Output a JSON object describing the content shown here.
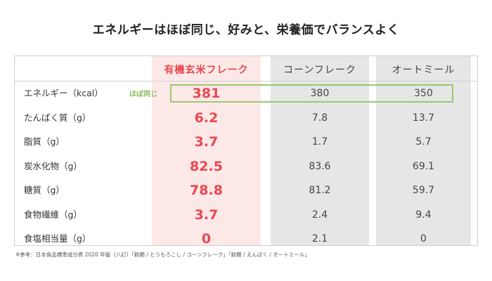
{
  "title": "エネルギーはほぼ同じ、好みと、栄養価でバランスよく",
  "annotation": "ほぼ同じ",
  "footnote": "※参考：日本食品標準成分表 2020 年版（八訂）「穀類 / とうもろこし / コーンフレーク」「穀類 / えんばく / オートミール」",
  "colors": {
    "highlight_text": "#e8474e",
    "highlight_bg": "#fde8e8",
    "gray_bg": "#e6e6e6",
    "annotation_green": "#9bc86f"
  },
  "chart_data": {
    "type": "table",
    "title": "エネルギーはほぼ同じ、好みと、栄養価でバランスよく",
    "columns": [
      "有機玄米フレーク",
      "コーンフレーク",
      "オートミール"
    ],
    "rows": [
      {
        "label": "エネルギー（kcal）",
        "values": [
          "381",
          "380",
          "350"
        ]
      },
      {
        "label": "たんぱく質（g）",
        "values": [
          "6.2",
          "7.8",
          "13.7"
        ]
      },
      {
        "label": "脂質（g）",
        "values": [
          "3.7",
          "1.7",
          "5.7"
        ]
      },
      {
        "label": "炭水化物（g）",
        "values": [
          "82.5",
          "83.6",
          "69.1"
        ]
      },
      {
        "label": "糖質（g）",
        "values": [
          "78.8",
          "81.2",
          "59.7"
        ]
      },
      {
        "label": "食物繊維（g）",
        "values": [
          "3.7",
          "2.4",
          "9.4"
        ]
      },
      {
        "label": "食塩相当量（g）",
        "values": [
          "0",
          "2.1",
          "0"
        ]
      }
    ]
  }
}
